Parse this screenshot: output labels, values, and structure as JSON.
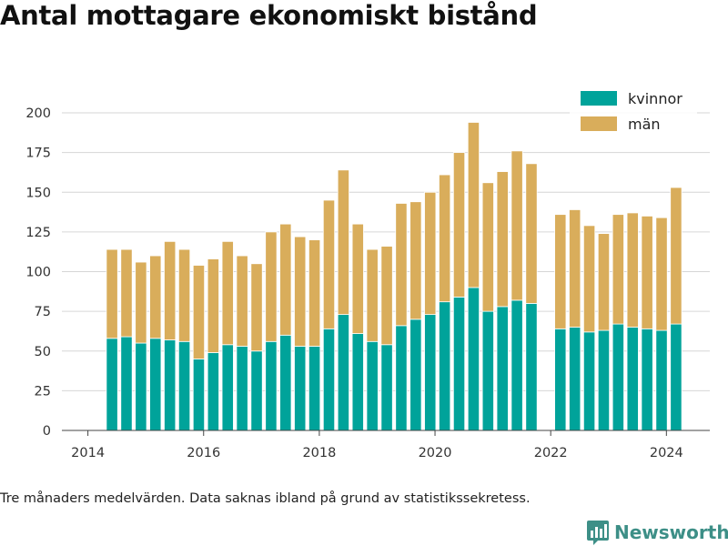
{
  "title": "Antal mottagare ekonomiskt bistånd",
  "footnote": "Tre månaders medelvärden. Data saknas ibland på grund av statistikssekretess.",
  "brand": {
    "name": "Newsworthy",
    "logo_icon": "newsworthy-logo-icon",
    "color": "#3d8f87"
  },
  "chart_data": {
    "type": "bar",
    "stacked": true,
    "title": "Antal mottagare ekonomiskt bistånd",
    "xlabel": "",
    "ylabel": "",
    "xlim": [
      2013.55,
      2024.75
    ],
    "ylim": [
      0,
      200
    ],
    "x_ticks": [
      2014,
      2016,
      2018,
      2020,
      2022,
      2024
    ],
    "y_ticks": [
      0,
      25,
      50,
      75,
      100,
      125,
      150,
      175,
      200
    ],
    "grid": "horizontal",
    "legend_position": "top-right",
    "x": [
      "2014-06",
      "2014-09",
      "2014-12",
      "2015-03",
      "2015-06",
      "2015-09",
      "2015-12",
      "2016-03",
      "2016-06",
      "2016-09",
      "2016-12",
      "2017-03",
      "2017-06",
      "2017-09",
      "2017-12",
      "2018-03",
      "2018-06",
      "2018-09",
      "2018-12",
      "2019-03",
      "2019-06",
      "2019-09",
      "2019-12",
      "2020-03",
      "2020-06",
      "2020-09",
      "2020-12",
      "2021-03",
      "2021-06",
      "2021-09",
      "2021-12",
      "2022-03",
      "2022-06",
      "2022-09",
      "2022-12",
      "2023-03",
      "2023-06",
      "2023-09",
      "2023-12",
      "2024-03"
    ],
    "series": [
      {
        "name": "kvinnor",
        "color": "#00a39a",
        "values": [
          58,
          59,
          55,
          58,
          57,
          56,
          45,
          49,
          54,
          53,
          50,
          56,
          60,
          53,
          53,
          64,
          73,
          61,
          56,
          54,
          66,
          70,
          73,
          81,
          84,
          90,
          75,
          78,
          82,
          80,
          null,
          64,
          65,
          62,
          63,
          67,
          65,
          64,
          63,
          67
        ]
      },
      {
        "name": "män",
        "color": "#d9ad5b",
        "values": [
          56,
          55,
          51,
          52,
          62,
          58,
          59,
          59,
          65,
          57,
          55,
          69,
          70,
          69,
          67,
          81,
          91,
          69,
          58,
          62,
          77,
          74,
          77,
          80,
          91,
          104,
          81,
          85,
          94,
          88,
          null,
          72,
          74,
          67,
          61,
          69,
          72,
          71,
          71,
          86
        ]
      }
    ]
  }
}
